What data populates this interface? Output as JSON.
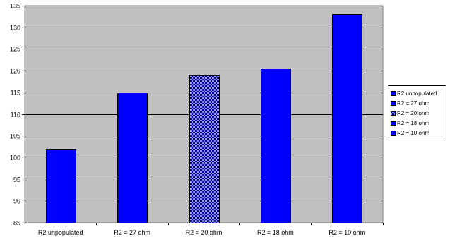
{
  "chart_data": {
    "type": "bar",
    "categories": [
      "R2 unpopulated",
      "R2 = 27 ohm",
      "R2 = 20 ohm",
      "R2 = 18 ohm",
      "R2 = 10 ohm"
    ],
    "values": [
      102,
      115,
      119,
      120.5,
      133
    ],
    "series": [
      {
        "name": "R2 unpopulated",
        "values": [
          102,
          null,
          null,
          null,
          null
        ],
        "style": "solid"
      },
      {
        "name": "R2 = 27 ohm",
        "values": [
          null,
          115,
          null,
          null,
          null
        ],
        "style": "solid"
      },
      {
        "name": "R2 = 20 ohm",
        "values": [
          null,
          null,
          119,
          null,
          null
        ],
        "style": "pattern"
      },
      {
        "name": "R2 = 18 ohm",
        "values": [
          null,
          null,
          null,
          120.5,
          null
        ],
        "style": "solid"
      },
      {
        "name": "R2 = 10 ohm",
        "values": [
          null,
          null,
          null,
          null,
          133
        ],
        "style": "solid"
      }
    ],
    "ylim": [
      85,
      135
    ],
    "yticks": [
      85,
      90,
      95,
      100,
      105,
      110,
      115,
      120,
      125,
      130,
      135
    ],
    "title": "",
    "xlabel": "",
    "ylabel": "",
    "grid": true,
    "legend_position": "right",
    "colors": {
      "plot_background": "#c0c0c0",
      "bar_fill": "#0000ff",
      "bar_pattern_dark": "#0000aa",
      "bar_pattern_light": "#9999ff",
      "gridline": "#000000"
    }
  }
}
